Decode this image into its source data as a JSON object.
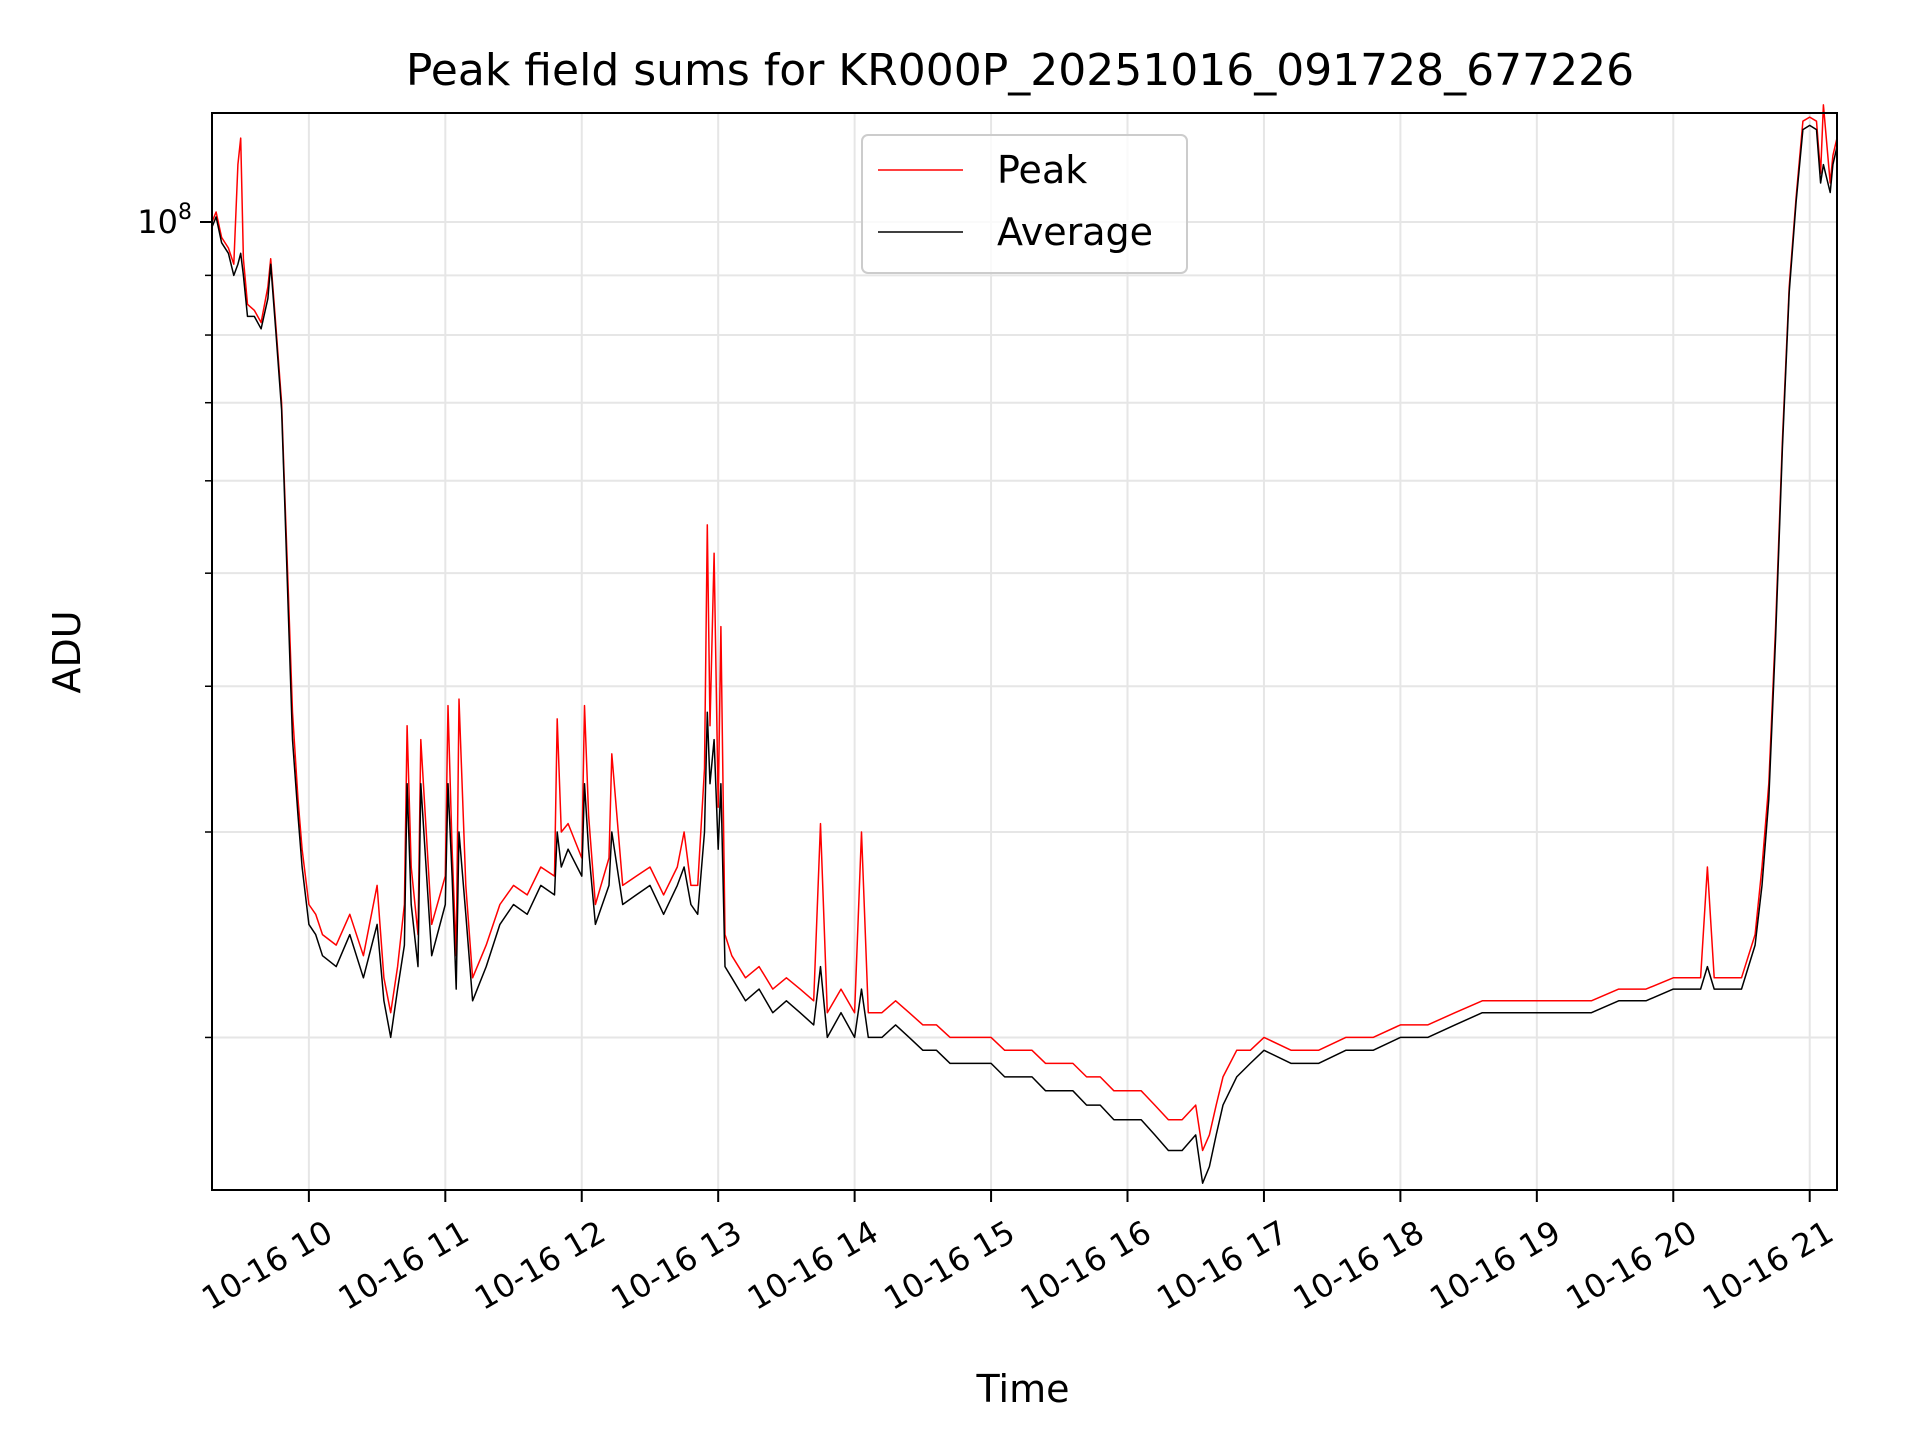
{
  "chart_data": {
    "type": "line",
    "title": "Peak field sums for KR000P_20251016_091728_677226",
    "xlabel": "Time",
    "ylabel": "ADU",
    "yscale": "log",
    "grid": true,
    "legend_position": "upper-center",
    "xlim": [
      9.29,
      21.2
    ],
    "ylim": [
      14800000,
      124000000
    ],
    "x_ticks": [
      {
        "value": 10,
        "label": "10-16 10"
      },
      {
        "value": 11,
        "label": "10-16 11"
      },
      {
        "value": 12,
        "label": "10-16 12"
      },
      {
        "value": 13,
        "label": "10-16 13"
      },
      {
        "value": 14,
        "label": "10-16 14"
      },
      {
        "value": 15,
        "label": "10-16 15"
      },
      {
        "value": 16,
        "label": "10-16 16"
      },
      {
        "value": 17,
        "label": "10-16 17"
      },
      {
        "value": 18,
        "label": "10-16 18"
      },
      {
        "value": 19,
        "label": "10-16 19"
      },
      {
        "value": 20,
        "label": "10-16 20"
      },
      {
        "value": 21,
        "label": "10-16 21"
      }
    ],
    "y_major_ticks": [
      {
        "value": 100000000,
        "base": "10",
        "exp": "8"
      }
    ],
    "y_minor_ticks": [
      20000000,
      30000000,
      40000000,
      50000000,
      60000000,
      70000000,
      80000000,
      90000000
    ],
    "series": [
      {
        "name": "Peak",
        "color": "#ff0000",
        "x": [
          9.29,
          9.32,
          9.36,
          9.41,
          9.45,
          9.48,
          9.5,
          9.52,
          9.55,
          9.6,
          9.65,
          9.7,
          9.72,
          9.76,
          9.8,
          9.82,
          9.85,
          9.88,
          9.92,
          9.95,
          10.0,
          10.05,
          10.1,
          10.2,
          10.3,
          10.4,
          10.5,
          10.55,
          10.6,
          10.65,
          10.7,
          10.72,
          10.75,
          10.8,
          10.82,
          10.9,
          11.0,
          11.02,
          11.05,
          11.08,
          11.1,
          11.15,
          11.2,
          11.3,
          11.4,
          11.5,
          11.6,
          11.7,
          11.8,
          11.82,
          11.85,
          11.9,
          12.0,
          12.02,
          12.05,
          12.1,
          12.2,
          12.22,
          12.3,
          12.4,
          12.5,
          12.6,
          12.7,
          12.75,
          12.8,
          12.85,
          12.9,
          12.92,
          12.94,
          12.97,
          13.0,
          13.02,
          13.05,
          13.1,
          13.2,
          13.3,
          13.4,
          13.5,
          13.6,
          13.7,
          13.75,
          13.8,
          13.9,
          14.0,
          14.05,
          14.1,
          14.2,
          14.3,
          14.4,
          14.5,
          14.6,
          14.7,
          14.8,
          14.9,
          15.0,
          15.1,
          15.2,
          15.3,
          15.4,
          15.5,
          15.6,
          15.7,
          15.8,
          15.9,
          16.0,
          16.1,
          16.2,
          16.3,
          16.4,
          16.5,
          16.55,
          16.6,
          16.65,
          16.7,
          16.8,
          16.9,
          17.0,
          17.2,
          17.4,
          17.6,
          17.8,
          18.0,
          18.2,
          18.4,
          18.6,
          18.8,
          19.0,
          19.2,
          19.4,
          19.6,
          19.8,
          20.0,
          20.2,
          20.25,
          20.3,
          20.4,
          20.5,
          20.6,
          20.65,
          20.7,
          20.75,
          20.8,
          20.85,
          20.9,
          20.95,
          21.0,
          21.05,
          21.08,
          21.1,
          21.15,
          21.17,
          21.2
        ],
        "values": [
          100000000,
          102000000,
          97000000,
          95000000,
          92000000,
          112000000,
          118000000,
          93000000,
          85000000,
          84000000,
          82000000,
          88000000,
          93000000,
          81000000,
          70000000,
          60000000,
          48000000,
          38000000,
          32000000,
          29000000,
          26000000,
          25500000,
          24500000,
          24000000,
          25500000,
          23500000,
          27000000,
          22500000,
          21000000,
          23000000,
          26000000,
          37000000,
          28000000,
          24500000,
          36000000,
          25000000,
          27500000,
          38500000,
          29000000,
          23500000,
          39000000,
          27000000,
          22500000,
          24000000,
          26000000,
          27000000,
          26500000,
          28000000,
          27500000,
          37500000,
          30000000,
          30500000,
          28500000,
          38500000,
          31000000,
          26000000,
          28500000,
          35000000,
          27000000,
          27500000,
          28000000,
          26500000,
          28000000,
          30000000,
          27000000,
          27000000,
          34000000,
          55000000,
          37000000,
          52000000,
          31500000,
          45000000,
          24500000,
          23500000,
          22500000,
          23000000,
          22000000,
          22500000,
          22000000,
          21500000,
          30500000,
          21000000,
          22000000,
          21000000,
          30000000,
          21000000,
          21000000,
          21500000,
          21000000,
          20500000,
          20500000,
          20000000,
          20000000,
          20000000,
          20000000,
          19500000,
          19500000,
          19500000,
          19000000,
          19000000,
          19000000,
          18500000,
          18500000,
          18000000,
          18000000,
          18000000,
          17500000,
          17000000,
          17000000,
          17500000,
          16000000,
          16500000,
          17500000,
          18500000,
          19500000,
          19500000,
          20000000,
          19500000,
          19500000,
          20000000,
          20000000,
          20500000,
          20500000,
          21000000,
          21500000,
          21500000,
          21500000,
          21500000,
          21500000,
          22000000,
          22000000,
          22500000,
          22500000,
          28000000,
          22500000,
          22500000,
          22500000,
          24500000,
          28000000,
          33000000,
          45000000,
          65000000,
          88000000,
          105000000,
          122000000,
          123000000,
          122000000,
          110000000,
          126000000,
          108000000,
          114000000,
          118000000
        ]
      },
      {
        "name": "Average",
        "color": "#000000",
        "x": [
          9.29,
          9.32,
          9.36,
          9.41,
          9.45,
          9.48,
          9.5,
          9.52,
          9.55,
          9.6,
          9.65,
          9.7,
          9.72,
          9.76,
          9.8,
          9.82,
          9.85,
          9.88,
          9.92,
          9.95,
          10.0,
          10.05,
          10.1,
          10.2,
          10.3,
          10.4,
          10.5,
          10.55,
          10.6,
          10.65,
          10.7,
          10.72,
          10.75,
          10.8,
          10.82,
          10.9,
          11.0,
          11.02,
          11.05,
          11.08,
          11.1,
          11.15,
          11.2,
          11.3,
          11.4,
          11.5,
          11.6,
          11.7,
          11.8,
          11.82,
          11.85,
          11.9,
          12.0,
          12.02,
          12.05,
          12.1,
          12.2,
          12.22,
          12.3,
          12.4,
          12.5,
          12.6,
          12.7,
          12.75,
          12.8,
          12.85,
          12.9,
          12.92,
          12.94,
          12.97,
          13.0,
          13.02,
          13.05,
          13.1,
          13.2,
          13.3,
          13.4,
          13.5,
          13.6,
          13.7,
          13.75,
          13.8,
          13.9,
          14.0,
          14.05,
          14.1,
          14.2,
          14.3,
          14.4,
          14.5,
          14.6,
          14.7,
          14.8,
          14.9,
          15.0,
          15.1,
          15.2,
          15.3,
          15.4,
          15.5,
          15.6,
          15.7,
          15.8,
          15.9,
          16.0,
          16.1,
          16.2,
          16.3,
          16.4,
          16.5,
          16.55,
          16.6,
          16.65,
          16.7,
          16.8,
          16.9,
          17.0,
          17.2,
          17.4,
          17.6,
          17.8,
          18.0,
          18.2,
          18.4,
          18.6,
          18.8,
          19.0,
          19.2,
          19.4,
          19.6,
          19.8,
          20.0,
          20.2,
          20.25,
          20.3,
          20.4,
          20.5,
          20.6,
          20.65,
          20.7,
          20.75,
          20.8,
          20.85,
          20.9,
          20.95,
          21.0,
          21.05,
          21.08,
          21.1,
          21.15,
          21.17,
          21.2
        ],
        "values": [
          99000000,
          101000000,
          96000000,
          94000000,
          90000000,
          92000000,
          94000000,
          90000000,
          83000000,
          83000000,
          81000000,
          86000000,
          92000000,
          80000000,
          69000000,
          59000000,
          46000000,
          36000000,
          31000000,
          28000000,
          25000000,
          24500000,
          23500000,
          23000000,
          24500000,
          22500000,
          25000000,
          21500000,
          20000000,
          22000000,
          24000000,
          33000000,
          26000000,
          23000000,
          33000000,
          23500000,
          26000000,
          33000000,
          27500000,
          22000000,
          30000000,
          25500000,
          21500000,
          23000000,
          25000000,
          26000000,
          25500000,
          27000000,
          26500000,
          30000000,
          28000000,
          29000000,
          27500000,
          33000000,
          29000000,
          25000000,
          27000000,
          30000000,
          26000000,
          26500000,
          27000000,
          25500000,
          27000000,
          28000000,
          26000000,
          25500000,
          30000000,
          38000000,
          33000000,
          36000000,
          29000000,
          33000000,
          23000000,
          22500000,
          21500000,
          22000000,
          21000000,
          21500000,
          21000000,
          20500000,
          23000000,
          20000000,
          21000000,
          20000000,
          22000000,
          20000000,
          20000000,
          20500000,
          20000000,
          19500000,
          19500000,
          19000000,
          19000000,
          19000000,
          19000000,
          18500000,
          18500000,
          18500000,
          18000000,
          18000000,
          18000000,
          17500000,
          17500000,
          17000000,
          17000000,
          17000000,
          16500000,
          16000000,
          16000000,
          16500000,
          15000000,
          15500000,
          16500000,
          17500000,
          18500000,
          19000000,
          19500000,
          19000000,
          19000000,
          19500000,
          19500000,
          20000000,
          20000000,
          20500000,
          21000000,
          21000000,
          21000000,
          21000000,
          21000000,
          21500000,
          21500000,
          22000000,
          22000000,
          23000000,
          22000000,
          22000000,
          22000000,
          24000000,
          27000000,
          32000000,
          44000000,
          64000000,
          87000000,
          104000000,
          120000000,
          121000000,
          120000000,
          108000000,
          112000000,
          106000000,
          112000000,
          116000000
        ]
      }
    ]
  }
}
